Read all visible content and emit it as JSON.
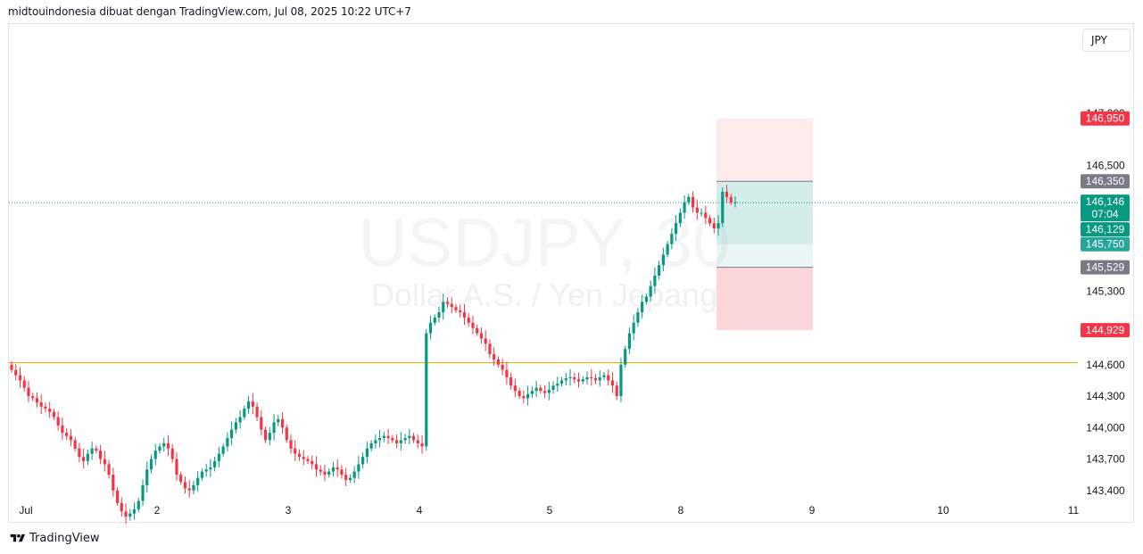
{
  "header": {
    "attribution": "midtouindonesia dibuat dengan TradingView.com, Jul 08, 2025 10:22 UTC+7"
  },
  "currency_label": "JPY",
  "footer": {
    "brand": "TradingView"
  },
  "watermark": {
    "symbol": "USDJPY, 30",
    "description": "Dollar A.S. / Yen Jepang"
  },
  "colors": {
    "up": "#089981",
    "down": "#f23645",
    "support": "#f7a600",
    "target": "#26a69a",
    "stop": "#f23645",
    "entry": "#787b86"
  },
  "chart_data": {
    "type": "candlestick",
    "timeframe": "30",
    "x_ticks": [
      "Jul",
      "2",
      "3",
      "4",
      "5",
      "8",
      "9",
      "10",
      "11"
    ],
    "y_ticks": [
      "147,000",
      "146,500",
      "145,300",
      "144,600",
      "144,300",
      "144,000",
      "143,700",
      "143,400"
    ],
    "ylim": [
      143.1,
      147.85
    ],
    "last_price": 146.146,
    "countdown": "07:04",
    "price_labels": [
      {
        "value": "146,950",
        "role": "stop"
      },
      {
        "value": "146,350",
        "role": "entry"
      },
      {
        "value": "146,146",
        "role": "last",
        "sub": "07:04"
      },
      {
        "value": "146,129",
        "role": "last2"
      },
      {
        "value": "145,750",
        "role": "target"
      },
      {
        "value": "145,529",
        "role": "entry"
      },
      {
        "value": "144,929",
        "role": "stop"
      }
    ],
    "support_line": 144.62,
    "position": {
      "type": "short",
      "stop": 146.95,
      "entry": 146.35,
      "target": 145.75,
      "lower_entry": 145.529,
      "lower_stop": 144.929
    },
    "close_series": [
      144.55,
      144.5,
      144.45,
      144.38,
      144.3,
      144.28,
      144.24,
      144.2,
      144.18,
      144.15,
      144.1,
      144.02,
      143.95,
      143.92,
      143.88,
      143.8,
      143.72,
      143.68,
      143.75,
      143.8,
      143.78,
      143.7,
      143.65,
      143.55,
      143.4,
      143.28,
      143.2,
      143.15,
      143.18,
      143.22,
      143.3,
      143.45,
      143.6,
      143.7,
      143.78,
      143.82,
      143.85,
      143.8,
      143.7,
      143.55,
      143.48,
      143.42,
      143.4,
      143.45,
      143.52,
      143.58,
      143.6,
      143.62,
      143.68,
      143.75,
      143.82,
      143.9,
      143.98,
      144.05,
      144.1,
      144.18,
      144.25,
      144.2,
      144.1,
      143.98,
      143.88,
      143.95,
      144.05,
      144.08,
      144.0,
      143.88,
      143.8,
      143.75,
      143.72,
      143.7,
      143.68,
      143.65,
      143.6,
      143.58,
      143.55,
      143.58,
      143.62,
      143.6,
      143.55,
      143.5,
      143.52,
      143.58,
      143.65,
      143.72,
      143.8,
      143.85,
      143.88,
      143.9,
      143.92,
      143.9,
      143.88,
      143.85,
      143.88,
      143.9,
      143.92,
      143.88,
      143.85,
      143.82,
      144.9,
      145.0,
      145.05,
      145.1,
      145.2,
      145.18,
      145.15,
      145.12,
      145.1,
      145.05,
      145.0,
      144.95,
      144.9,
      144.85,
      144.8,
      144.7,
      144.65,
      144.6,
      144.55,
      144.48,
      144.4,
      144.35,
      144.3,
      144.28,
      144.32,
      144.35,
      144.38,
      144.35,
      144.33,
      144.36,
      144.4,
      144.42,
      144.45,
      144.47,
      144.48,
      144.46,
      144.44,
      144.46,
      144.48,
      144.47,
      144.45,
      144.48,
      144.5,
      144.45,
      144.4,
      144.3,
      144.6,
      144.75,
      144.9,
      145.0,
      145.1,
      145.2,
      145.25,
      145.35,
      145.45,
      145.55,
      145.65,
      145.75,
      145.85,
      145.95,
      146.05,
      146.15,
      146.2,
      146.1,
      146.05,
      146.05,
      146.0,
      145.95,
      145.9,
      145.95,
      146.25,
      146.2,
      146.15,
      146.15
    ]
  }
}
